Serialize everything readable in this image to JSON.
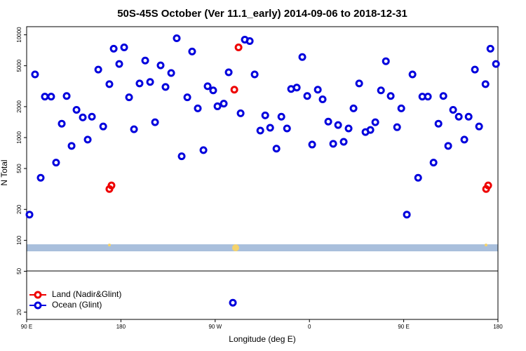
{
  "chart_data": {
    "type": "scatter",
    "title": "50S-45S October (Ver 11.1_early)   2014-09-06 to 2018-12-31",
    "x_label": "Longitude (deg E)",
    "y_label": "N Total",
    "xlim": [
      90,
      540
    ],
    "xticks": [
      {
        "value": 90,
        "label": "90 E"
      },
      180,
      {
        "value": 270,
        "label": "90 W"
      },
      {
        "value": 360,
        "label": "0"
      },
      {
        "value": 450,
        "label": "90 E"
      },
      {
        "value": 540,
        "label": "180"
      }
    ],
    "ylim": [
      17,
      12000
    ],
    "y_log": true,
    "yticks": [
      20,
      50,
      100,
      200,
      500,
      1000,
      2000,
      5000,
      10000
    ],
    "legend": "lower left",
    "series": [
      {
        "name": "Land (Nadir&Glint)",
        "color": "#ee0000",
        "x": [
          169.0,
          171.0,
          288.3,
          292.3,
          528.7,
          530.7
        ],
        "values": [
          316,
          342,
          2925,
          7550,
          316,
          342
        ]
      },
      {
        "name": "Ocean (Glint)",
        "color": "#0000dd",
        "x": [
          92.7,
          98,
          103.4,
          107.4,
          113.4,
          118.1,
          123.5,
          128.2,
          132.9,
          137.6,
          143.6,
          148.3,
          152.3,
          158.4,
          163.1,
          169.0,
          173.1,
          178.4,
          183.1,
          187.8,
          192.5,
          197.8,
          203.2,
          207.9,
          212.6,
          217.9,
          222.6,
          228.0,
          233.3,
          238.0,
          243.4,
          248.0,
          253.4,
          258.8,
          262.8,
          268.1,
          272.2,
          278.2,
          282.9,
          286.9,
          294.3,
          298.3,
          303.0,
          307.7,
          313.1,
          317.8,
          322.5,
          328.5,
          333.2,
          338.6,
          342.5,
          347.9,
          353.2,
          357.9,
          362.6,
          368.0,
          372.6,
          378.0,
          382.7,
          387.4,
          392.7,
          397.4,
          402.1,
          407.5,
          413.5,
          418.2,
          422.9,
          428.3,
          433.0,
          437.6,
          443.7,
          447.7,
          453.0,
          458.4,
          463.8,
          467.8,
          473.1,
          478.5,
          483.2,
          487.9,
          492.5,
          497.2,
          502.6,
          507.9,
          512.0,
          518.0,
          522.0,
          528.1,
          532.8,
          538.1
        ],
        "values": [
          178,
          4120,
          406,
          2505,
          2505,
          571,
          1365,
          2540,
          830,
          1862,
          1570,
          955,
          1595,
          4590,
          1282,
          3310,
          7330,
          5200,
          7550,
          2465,
          1205,
          3365,
          5620,
          3475,
          1410,
          5045,
          3110,
          4250,
          9250,
          658,
          2465,
          6880,
          1923,
          755,
          3160,
          2880,
          2015,
          2140,
          4315,
          24.7,
          1722,
          8970,
          8690,
          4120,
          1170,
          1645,
          1245,
          780,
          1595,
          1226,
          2970,
          3065,
          6080,
          2540,
          855,
          2925,
          2355,
          1430,
          870,
          1324,
          910,
          1226,
          1923,
          3365,
          1132,
          1186,
          1410,
          2880,
          5535,
          2540,
          1262,
          1923,
          178,
          4120,
          406,
          2505,
          2505,
          571,
          1365,
          2540,
          830,
          1862,
          1595,
          955,
          1595,
          4590,
          1282,
          3310,
          7330,
          5200
        ]
      }
    ]
  }
}
